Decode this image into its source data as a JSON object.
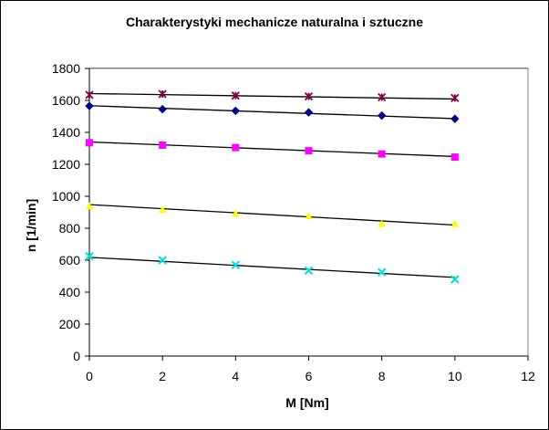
{
  "chart_data": {
    "type": "scatter",
    "title": "Charakterystyki mechanicze naturalna i sztuczne",
    "xlabel": "M [Nm]",
    "ylabel": "n [1/min]",
    "xlim": [
      0,
      12
    ],
    "ylim": [
      0,
      1800
    ],
    "xticks": [
      0,
      2,
      4,
      6,
      8,
      10,
      12
    ],
    "yticks": [
      0,
      200,
      400,
      600,
      800,
      1000,
      1200,
      1400,
      1600,
      1800
    ],
    "grid": "horizontal",
    "plot_background": "#ffffff",
    "series": [
      {
        "marker": "asterisk",
        "color": "#800040",
        "x": [
          0,
          2,
          4,
          6,
          8,
          10
        ],
        "y": [
          1635,
          1640,
          1630,
          1625,
          1620,
          1615
        ],
        "trendline": [
          1643,
          1609
        ]
      },
      {
        "marker": "diamond",
        "color": "#000080",
        "x": [
          0,
          2,
          4,
          6,
          8,
          10
        ],
        "y": [
          1565,
          1545,
          1535,
          1525,
          1505,
          1485
        ],
        "trendline": [
          1567,
          1486
        ]
      },
      {
        "marker": "square",
        "color": "#ff00ff",
        "x": [
          0,
          2,
          4,
          6,
          8,
          10
        ],
        "y": [
          1335,
          1320,
          1305,
          1285,
          1265,
          1245
        ],
        "trendline": [
          1340,
          1249
        ]
      },
      {
        "marker": "triangle",
        "color": "#ffff00",
        "x": [
          0,
          2,
          4,
          6,
          8,
          10
        ],
        "y": [
          940,
          920,
          895,
          880,
          830,
          830
        ],
        "trendline": [
          948,
          820
        ]
      },
      {
        "marker": "cross",
        "color": "#00e0e0",
        "x": [
          0,
          2,
          4,
          6,
          8,
          10
        ],
        "y": [
          625,
          600,
          570,
          535,
          525,
          480
        ],
        "trendline": [
          618,
          492
        ]
      }
    ]
  }
}
